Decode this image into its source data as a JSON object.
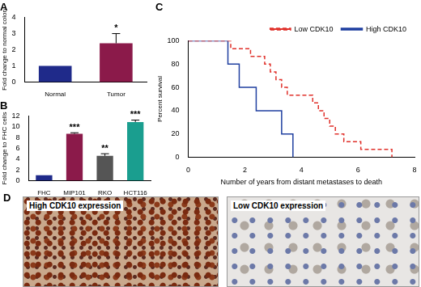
{
  "chart_data": [
    {
      "type": "bar",
      "title": "A",
      "categories": [
        "Normal",
        "Tumor"
      ],
      "values": [
        1,
        2.4
      ],
      "errors": [
        0,
        0.6
      ],
      "colors": [
        "#1f2a8a",
        "#8b1a4a"
      ],
      "y_label": "Fold change to normal colon",
      "ylim": [
        0,
        4
      ],
      "yticks": [
        0,
        1,
        2,
        3,
        4
      ],
      "grid": false,
      "annotations": [
        {
          "category": "Tumor",
          "text": "*"
        }
      ]
    },
    {
      "type": "bar",
      "title": "B",
      "categories": [
        "FHC",
        "MIP101",
        "RKO",
        "HCT116"
      ],
      "values": [
        1,
        8.7,
        4.6,
        10.9
      ],
      "errors": [
        0,
        0.2,
        0.4,
        0.35
      ],
      "colors": [
        "#1f2a8a",
        "#8b1a4a",
        "#555555",
        "#1a9e8f"
      ],
      "y_label": "Fold change to FHC cells",
      "ylim": [
        0,
        12
      ],
      "yticks": [
        0,
        2,
        4,
        6,
        8,
        10,
        12
      ],
      "grid": false,
      "annotations": [
        {
          "category": "MIP101",
          "text": "***"
        },
        {
          "category": "RKO",
          "text": "**"
        },
        {
          "category": "HCT116",
          "text": "***"
        }
      ]
    },
    {
      "type": "step",
      "title": "C",
      "x_label": "Number of years from distant metastases to death",
      "y_label": "Percent survival",
      "xlim": [
        0,
        8
      ],
      "xticks": [
        0,
        2,
        4,
        6,
        8
      ],
      "ylim": [
        0,
        100
      ],
      "yticks": [
        0,
        20,
        40,
        60,
        80,
        100
      ],
      "grid": false,
      "legend": "top-right",
      "series": [
        {
          "name": "Low CDK10",
          "color": "#e0302a",
          "line_style": "dashed",
          "x": [
            0,
            1.5,
            2.2,
            2.7,
            2.9,
            3.1,
            3.3,
            3.5,
            4.4,
            4.6,
            4.8,
            5.0,
            5.2,
            5.5,
            6.1,
            7.2
          ],
          "values": [
            100,
            93.3,
            86.7,
            80,
            73.3,
            66.7,
            60,
            53.3,
            46.7,
            40,
            33.3,
            26.7,
            20,
            13.3,
            6.7,
            0
          ]
        },
        {
          "name": "High CDK10",
          "color": "#1f3fa0",
          "line_style": "solid",
          "x": [
            0,
            1.4,
            1.8,
            2.4,
            3.3,
            3.7
          ],
          "values": [
            100,
            80,
            60,
            40,
            20,
            0
          ]
        }
      ]
    }
  ],
  "images": {
    "title": "D",
    "items": [
      {
        "label": "High CDK10 expression"
      },
      {
        "label": "Low CDK10 expression"
      }
    ]
  }
}
